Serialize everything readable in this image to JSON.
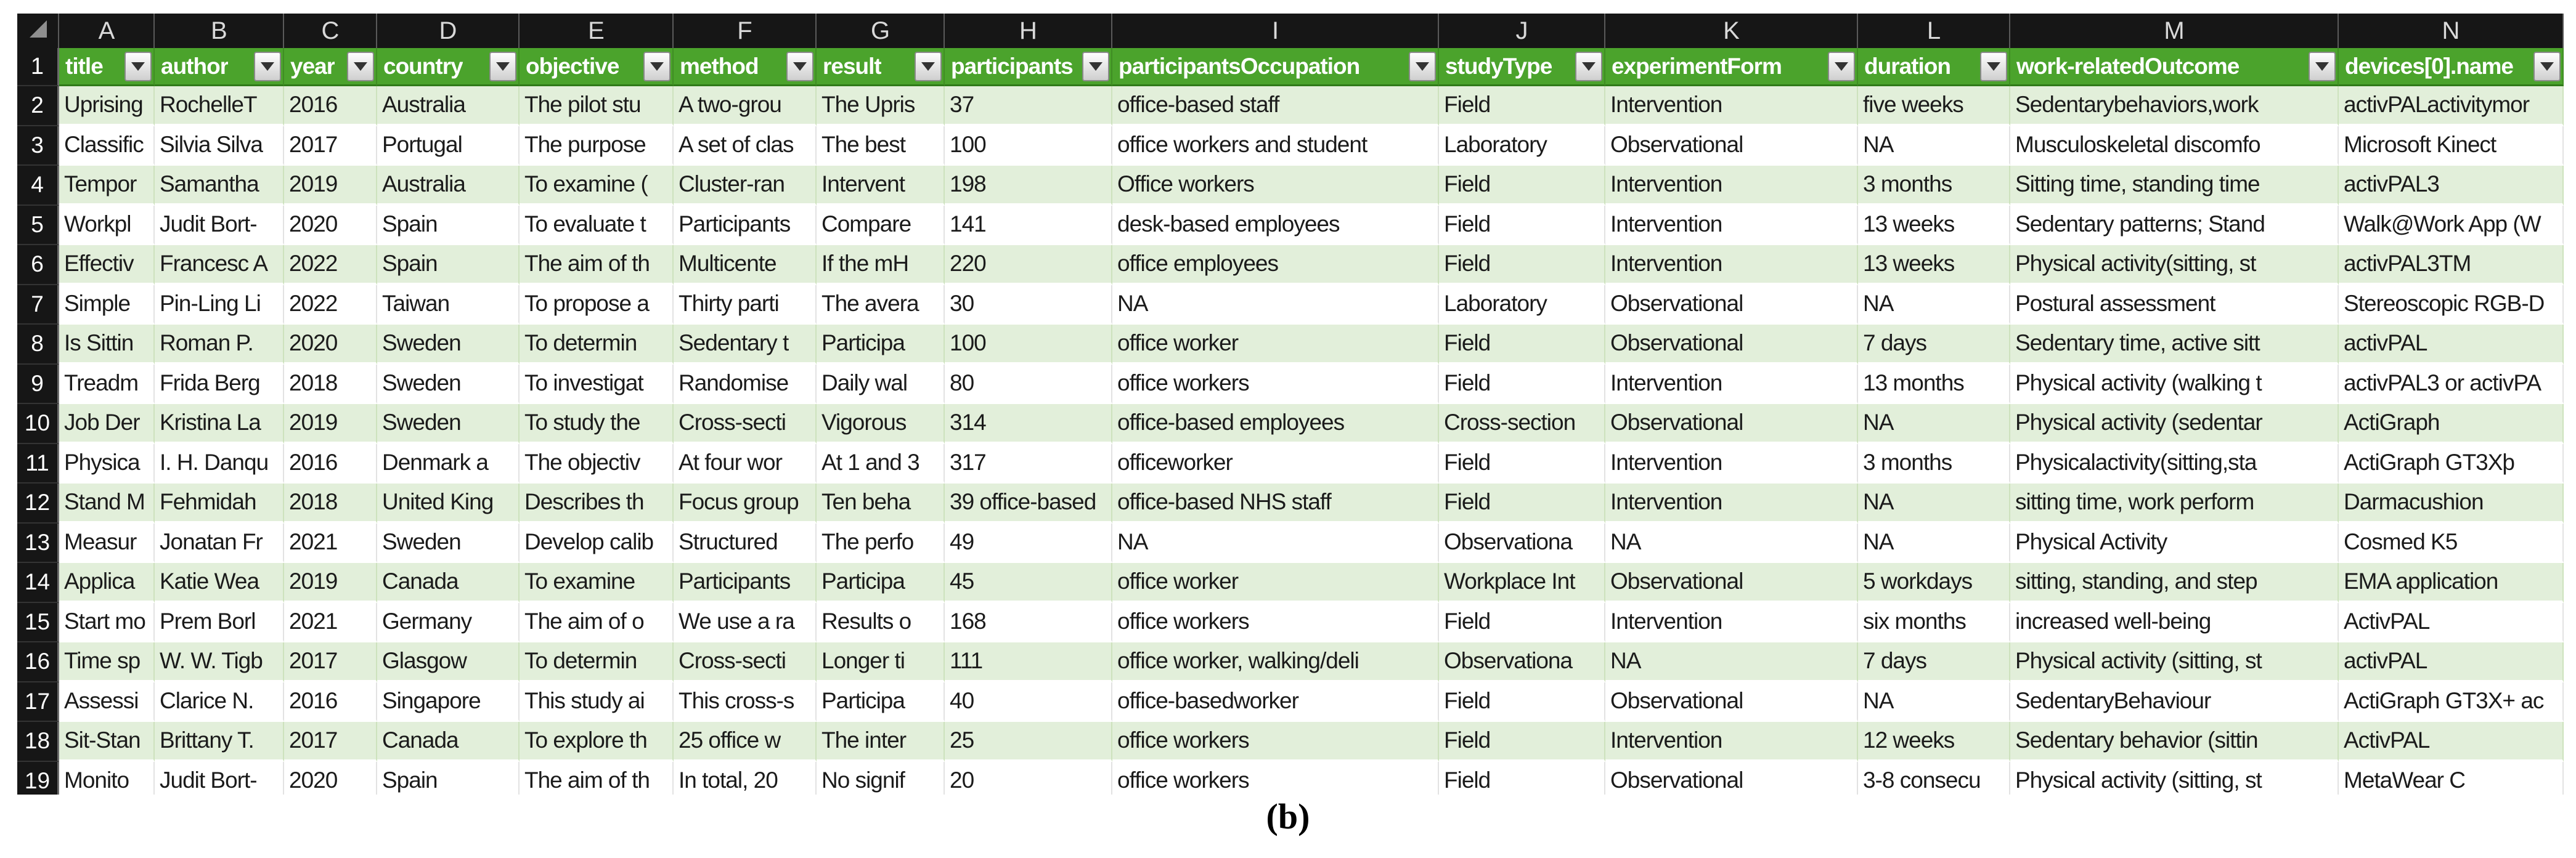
{
  "caption": "(b)",
  "colors": {
    "header_green": "#4ba32c",
    "band_light_green": "#e2efda",
    "gutter_black": "#161616"
  },
  "sheet": {
    "active_row_number": "1",
    "column_letters": [
      "A",
      "B",
      "C",
      "D",
      "E",
      "F",
      "G",
      "H",
      "I",
      "J",
      "K",
      "L",
      "M",
      "N"
    ],
    "filter_icon": "dropdown-triangle",
    "headers": [
      {
        "col": "A",
        "label": "title"
      },
      {
        "col": "B",
        "label": "author"
      },
      {
        "col": "C",
        "label": "year"
      },
      {
        "col": "D",
        "label": "country"
      },
      {
        "col": "E",
        "label": "objective"
      },
      {
        "col": "F",
        "label": "method"
      },
      {
        "col": "G",
        "label": "result"
      },
      {
        "col": "H",
        "label": "participants"
      },
      {
        "col": "I",
        "label": "participantsOccupation"
      },
      {
        "col": "J",
        "label": "studyType"
      },
      {
        "col": "K",
        "label": "experimentForm"
      },
      {
        "col": "L",
        "label": "duration"
      },
      {
        "col": "M",
        "label": "work-relatedOutcome"
      },
      {
        "col": "N",
        "label": "devices[0].name"
      }
    ],
    "rows": [
      {
        "num": "2",
        "cells": [
          "Uprising",
          "RochelleT",
          "2016",
          "Australia",
          "The pilot stu",
          "A two-grou",
          "The Upris",
          "37",
          "office-based staff",
          "Field",
          "Intervention",
          "five weeks",
          "Sedentarybehaviors,work",
          "activPALactivitymor"
        ]
      },
      {
        "num": "3",
        "cells": [
          "Classific",
          "Silvia Silva",
          "2017",
          "Portugal",
          "The purpose",
          "A set of clas",
          "The best",
          "100",
          "office workers and student",
          "Laboratory",
          "Observational",
          "NA",
          "Musculoskeletal discomfo",
          "Microsoft Kinect"
        ]
      },
      {
        "num": "4",
        "cells": [
          "Tempor",
          "Samantha",
          "2019",
          "Australia",
          "To examine (",
          "Cluster-ran",
          "Intervent",
          "198",
          "Office workers",
          "Field",
          "Intervention",
          "3 months",
          "Sitting time, standing time",
          "activPAL3"
        ]
      },
      {
        "num": "5",
        "cells": [
          "Workpl",
          "Judit Bort-",
          "2020",
          "Spain",
          "To evaluate t",
          "Participants",
          "Compare",
          "141",
          "desk-based employees",
          "Field",
          "Intervention",
          "13 weeks",
          "Sedentary patterns; Stand",
          "Walk@Work App (W"
        ]
      },
      {
        "num": "6",
        "cells": [
          "Effectiv",
          "Francesc A",
          "2022",
          "Spain",
          "The aim of th",
          "Multicente",
          "If the mH",
          "220",
          "office employees",
          "Field",
          "Intervention",
          "13 weeks",
          "Physical activity(sitting, st",
          "activPAL3TM"
        ]
      },
      {
        "num": "7",
        "cells": [
          "Simple",
          "Pin-Ling Li",
          "2022",
          "Taiwan",
          "To propose a",
          "Thirty parti",
          "The avera",
          "30",
          "NA",
          "Laboratory",
          "Observational",
          "NA",
          "Postural assessment",
          "Stereoscopic RGB-D"
        ]
      },
      {
        "num": "8",
        "cells": [
          "Is Sittin",
          "Roman P.",
          "2020",
          "Sweden",
          "To determin",
          "Sedentary t",
          "Participa",
          "100",
          "office worker",
          "Field",
          "Observational",
          "7 days",
          "Sedentary time, active sitt",
          "activPAL"
        ]
      },
      {
        "num": "9",
        "cells": [
          "Treadm",
          "Frida Berg",
          "2018",
          "Sweden",
          "To investigat",
          "Randomise",
          "Daily wal",
          "80",
          "office workers",
          "Field",
          "Intervention",
          "13 months",
          "Physical activity (walking t",
          "activPAL3 or activPA"
        ]
      },
      {
        "num": "10",
        "cells": [
          "Job Der",
          "Kristina La",
          "2019",
          "Sweden",
          "To study the",
          "Cross-secti",
          "Vigorous",
          "314",
          "office-based employees",
          "Cross-section",
          "Observational",
          "NA",
          "Physical activity (sedentar",
          "ActiGraph"
        ]
      },
      {
        "num": "11",
        "cells": [
          "Physica",
          "I. H. Danqu",
          "2016",
          "Denmark a",
          "The objectiv",
          "At four wor",
          "At 1 and 3",
          "317",
          "officeworker",
          "Field",
          "Intervention",
          "3 months",
          "Physicalactivity(sitting,sta",
          "ActiGraph GT3Xþ"
        ]
      },
      {
        "num": "12",
        "cells": [
          "Stand M",
          "Fehmidah",
          "2018",
          "United King",
          "Describes th",
          "Focus group",
          "Ten beha",
          "39 office-based",
          "office-based NHS staff",
          "Field",
          "Intervention",
          "NA",
          "sitting time, work perform",
          "Darmacushion"
        ]
      },
      {
        "num": "13",
        "cells": [
          "Measur",
          "Jonatan Fr",
          "2021",
          "Sweden",
          "Develop calib",
          "Structured",
          "The perfo",
          "49",
          "NA",
          "Observationa",
          "NA",
          "NA",
          "Physical Activity",
          "Cosmed K5"
        ]
      },
      {
        "num": "14",
        "cells": [
          "Applica",
          "Katie Wea",
          "2019",
          "Canada",
          "To examine",
          "Participants",
          "Participa",
          "45",
          "office worker",
          "Workplace Int",
          "Observational",
          "5 workdays",
          "sitting, standing, and step",
          "EMA application"
        ]
      },
      {
        "num": "15",
        "cells": [
          "Start mo",
          "Prem Borl",
          "2021",
          "Germany",
          "The aim of o",
          "We use a ra",
          "Results o",
          "168",
          "office workers",
          "Field",
          "Intervention",
          "six months",
          "increased well-being",
          "ActivPAL"
        ]
      },
      {
        "num": "16",
        "cells": [
          "Time sp",
          "W. W. Tigb",
          "2017",
          "Glasgow",
          "To determin",
          "Cross-secti",
          "Longer ti",
          "111",
          "office worker, walking/deli",
          "Observationa",
          "NA",
          "7 days",
          "Physical activity (sitting, st",
          "activPAL"
        ]
      },
      {
        "num": "17",
        "cells": [
          "Assessi",
          "Clarice N.",
          "2016",
          "Singapore",
          "This study ai",
          "This cross-s",
          "Participa",
          "40",
          "office-basedworker",
          "Field",
          "Observational",
          "NA",
          "SedentaryBehaviour",
          "ActiGraph GT3X+ ac"
        ]
      },
      {
        "num": "18",
        "cells": [
          "Sit-Stan",
          "Brittany T.",
          "2017",
          "Canada",
          "To explore th",
          "25 office w",
          "The inter",
          "25",
          "office workers",
          "Field",
          "Intervention",
          "12 weeks",
          "Sedentary behavior (sittin",
          "ActivPAL"
        ]
      },
      {
        "num": "19",
        "cells": [
          "Monito",
          "Judit Bort-",
          "2020",
          "Spain",
          "The aim of th",
          "In total, 20",
          "No signif",
          "20",
          "office workers",
          "Field",
          "Observational",
          "3-8 consecu",
          "Physical activity (sitting, st",
          "MetaWear C"
        ]
      }
    ]
  }
}
